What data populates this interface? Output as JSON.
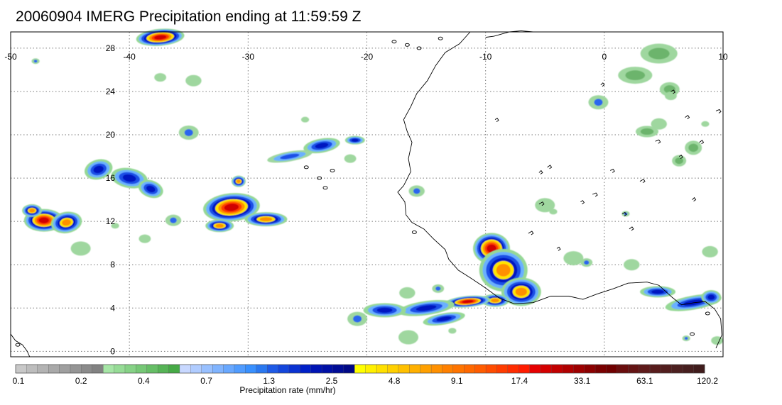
{
  "title": "20060904 IMERG Precipitation ending at 11:59:59 Z",
  "map": {
    "lon_range": [
      -50,
      10
    ],
    "lat_range": [
      -0.5,
      29.5
    ],
    "lon_ticks": [
      {
        "value": -50,
        "label": "-50"
      },
      {
        "value": -40,
        "label": "-40"
      },
      {
        "value": -30,
        "label": "-30"
      },
      {
        "value": -20,
        "label": "-20"
      },
      {
        "value": -10,
        "label": "-10"
      },
      {
        "value": 0,
        "label": "0"
      },
      {
        "value": 10,
        "label": "10"
      }
    ],
    "lat_ticks": [
      {
        "value": 0,
        "label": "0"
      },
      {
        "value": 4,
        "label": "4"
      },
      {
        "value": 8,
        "label": "8"
      },
      {
        "value": 12,
        "label": "12"
      },
      {
        "value": 16,
        "label": "16"
      },
      {
        "value": 20,
        "label": "20"
      },
      {
        "value": 24,
        "label": "24"
      },
      {
        "value": 28,
        "label": "28"
      }
    ],
    "grid": "dotted",
    "coastline_color": "#000000"
  },
  "colorbar": {
    "caption": "Precipitation rate (mm/hr)",
    "labels": [
      "0.1",
      "0.2",
      "0.4",
      "0.7",
      "1.3",
      "2.5",
      "4.8",
      "9.1",
      "17.4",
      "33.1",
      "63.1",
      "120.2"
    ],
    "colors": [
      "#c8c8c8",
      "#bdbdbd",
      "#b3b3b3",
      "#a9a9a9",
      "#9f9f9f",
      "#959595",
      "#8b8b8b",
      "#828282",
      "#a6e6a6",
      "#96dc96",
      "#86d286",
      "#76c876",
      "#66be66",
      "#56b456",
      "#46aa46",
      "#c8d8ff",
      "#b0ccff",
      "#98c0ff",
      "#80b4ff",
      "#68a8ff",
      "#509cff",
      "#3890ff",
      "#2a78f0",
      "#1e5ae6",
      "#1446dc",
      "#0a32d2",
      "#0020c8",
      "#0014b4",
      "#0010a6",
      "#000c96",
      "#000886",
      "#ffff00",
      "#fff000",
      "#ffe000",
      "#ffd000",
      "#ffc000",
      "#ffb000",
      "#ffa000",
      "#ff9000",
      "#ff8000",
      "#ff7400",
      "#ff6800",
      "#ff5c00",
      "#ff4c00",
      "#ff3c00",
      "#ff2c00",
      "#ff1c00",
      "#e60000",
      "#d40000",
      "#c20000",
      "#b00000",
      "#9e0000",
      "#8c0000",
      "#7a0000",
      "#700000",
      "#6a0e0e",
      "#641414",
      "#5e1a1a",
      "#581c1c",
      "#521e1e",
      "#4c2020",
      "#461e1e",
      "#401c1c"
    ]
  },
  "precip_systems": [
    {
      "name": "system-atlantic-west",
      "lon": -46.5,
      "lat": 12.3,
      "intensity": "heavy"
    },
    {
      "name": "system-atlantic-north",
      "lon": -42.5,
      "lat": 16.6,
      "intensity": "moderate"
    },
    {
      "name": "system-atlantic-central",
      "lon": -30.5,
      "lat": 13.3,
      "intensity": "heavy"
    },
    {
      "name": "system-atlantic-northeast",
      "lon": -24.0,
      "lat": 19.0,
      "intensity": "moderate"
    },
    {
      "name": "system-top-edge",
      "lon": -37.5,
      "lat": 29.0,
      "intensity": "heavy"
    },
    {
      "name": "system-west-africa",
      "lon": -8.5,
      "lat": 7.0,
      "intensity": "heavy"
    },
    {
      "name": "system-gulf-guinea",
      "lon": -11.0,
      "lat": 4.6,
      "intensity": "heavy"
    },
    {
      "name": "system-east-coast",
      "lon": 7.5,
      "lat": 4.6,
      "intensity": "moderate"
    },
    {
      "name": "system-sahel-east",
      "lon": 4.0,
      "lat": 21.0,
      "intensity": "light"
    },
    {
      "name": "system-north-east",
      "lon": 4.5,
      "lat": 27.5,
      "intensity": "light"
    }
  ]
}
